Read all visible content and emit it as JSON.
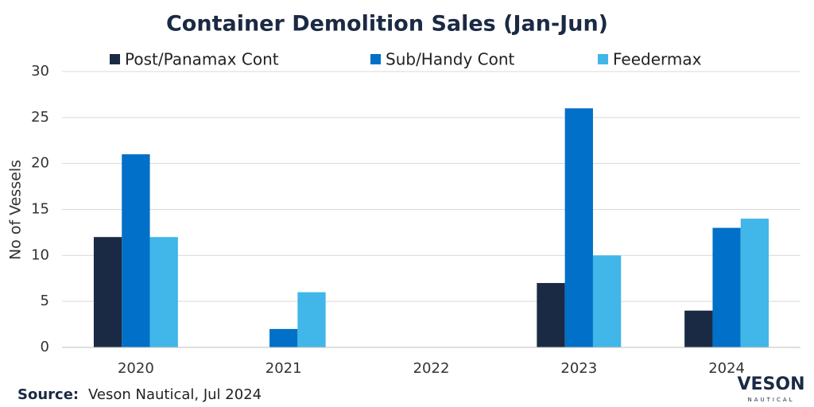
{
  "chart_data": {
    "type": "bar",
    "title": "Container Demolition Sales (Jan-Jun)",
    "y_label": "No of Vessels",
    "categories": [
      "2020",
      "2021",
      "2022",
      "2023",
      "2024"
    ],
    "series": [
      {
        "name": "Post/Panamax Cont",
        "color": "#1b2a44",
        "values": [
          12,
          0,
          0,
          7,
          4
        ]
      },
      {
        "name": "Sub/Handy Cont",
        "color": "#0070c8",
        "values": [
          21,
          2,
          0,
          26,
          13
        ]
      },
      {
        "name": "Feedermax",
        "color": "#41b6e9",
        "values": [
          12,
          6,
          0,
          10,
          14
        ]
      }
    ],
    "ylim": [
      0,
      30
    ],
    "yticks": [
      0,
      5,
      10,
      15,
      20,
      25,
      30
    ],
    "grid": true,
    "legend": "top"
  },
  "source": {
    "label": "Source:",
    "text": "Veson Nautical, Jul 2024"
  },
  "logo": {
    "name": "VESON",
    "sub": "NAUTICAL"
  }
}
